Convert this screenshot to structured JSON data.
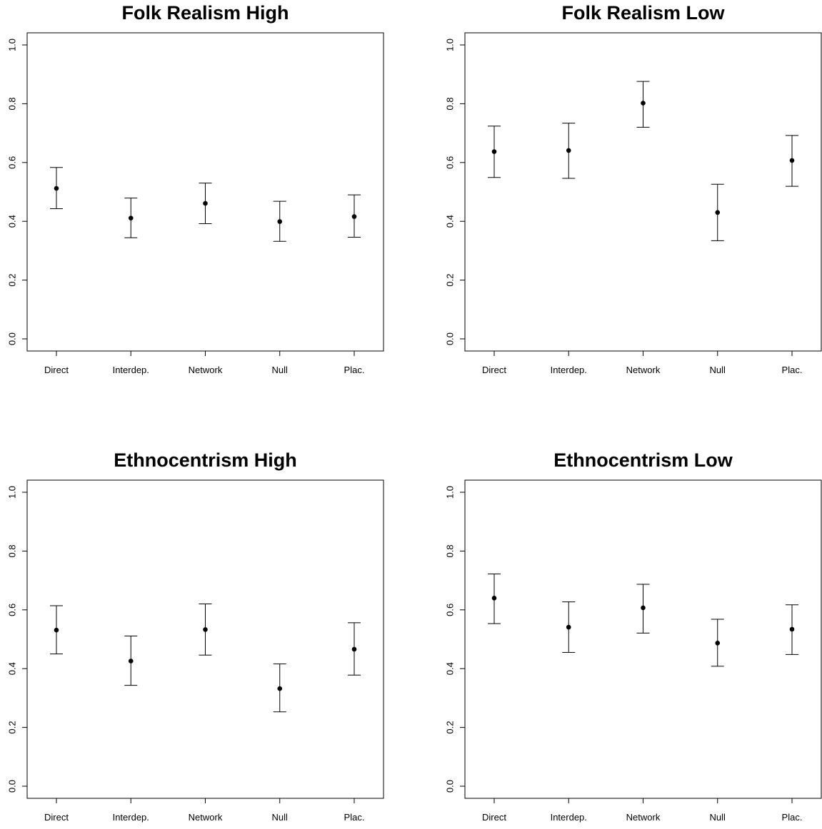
{
  "chart_data": [
    {
      "type": "scatter",
      "title": "Folk Realism High",
      "categories": [
        "Direct",
        "Interdep.",
        "Network",
        "Null",
        "Plac."
      ],
      "yticks": [
        "0.0",
        "0.2",
        "0.4",
        "0.6",
        "0.8",
        "1.0"
      ],
      "ylim": [
        0,
        1
      ],
      "grid": false,
      "series": [
        {
          "values": [
            0.512,
            0.411,
            0.461,
            0.399,
            0.416
          ],
          "lower": [
            0.443,
            0.344,
            0.392,
            0.332,
            0.346
          ],
          "upper": [
            0.583,
            0.479,
            0.53,
            0.468,
            0.49
          ]
        }
      ]
    },
    {
      "type": "scatter",
      "title": "Folk Realism Low",
      "categories": [
        "Direct",
        "Interdep.",
        "Network",
        "Null",
        "Plac."
      ],
      "yticks": [
        "0.0",
        "0.2",
        "0.4",
        "0.6",
        "0.8",
        "1.0"
      ],
      "ylim": [
        0,
        1
      ],
      "grid": false,
      "series": [
        {
          "values": [
            0.637,
            0.641,
            0.802,
            0.43,
            0.607
          ],
          "lower": [
            0.549,
            0.546,
            0.72,
            0.334,
            0.519
          ],
          "upper": [
            0.724,
            0.734,
            0.876,
            0.526,
            0.692
          ]
        }
      ]
    },
    {
      "type": "scatter",
      "title": "Ethnocentrism High",
      "categories": [
        "Direct",
        "Interdep.",
        "Network",
        "Null",
        "Plac."
      ],
      "yticks": [
        "0.0",
        "0.2",
        "0.4",
        "0.6",
        "0.8",
        "1.0"
      ],
      "ylim": [
        0,
        1
      ],
      "grid": false,
      "series": [
        {
          "values": [
            0.531,
            0.426,
            0.533,
            0.332,
            0.466
          ],
          "lower": [
            0.45,
            0.343,
            0.446,
            0.253,
            0.378
          ],
          "upper": [
            0.614,
            0.511,
            0.62,
            0.416,
            0.556
          ]
        }
      ]
    },
    {
      "type": "scatter",
      "title": "Ethnocentrism Low",
      "categories": [
        "Direct",
        "Interdep.",
        "Network",
        "Null",
        "Plac."
      ],
      "yticks": [
        "0.0",
        "0.2",
        "0.4",
        "0.6",
        "0.8",
        "1.0"
      ],
      "ylim": [
        0,
        1
      ],
      "grid": false,
      "series": [
        {
          "values": [
            0.64,
            0.541,
            0.607,
            0.487,
            0.534
          ],
          "lower": [
            0.553,
            0.455,
            0.521,
            0.408,
            0.448
          ],
          "upper": [
            0.722,
            0.627,
            0.687,
            0.568,
            0.617
          ]
        }
      ]
    }
  ]
}
